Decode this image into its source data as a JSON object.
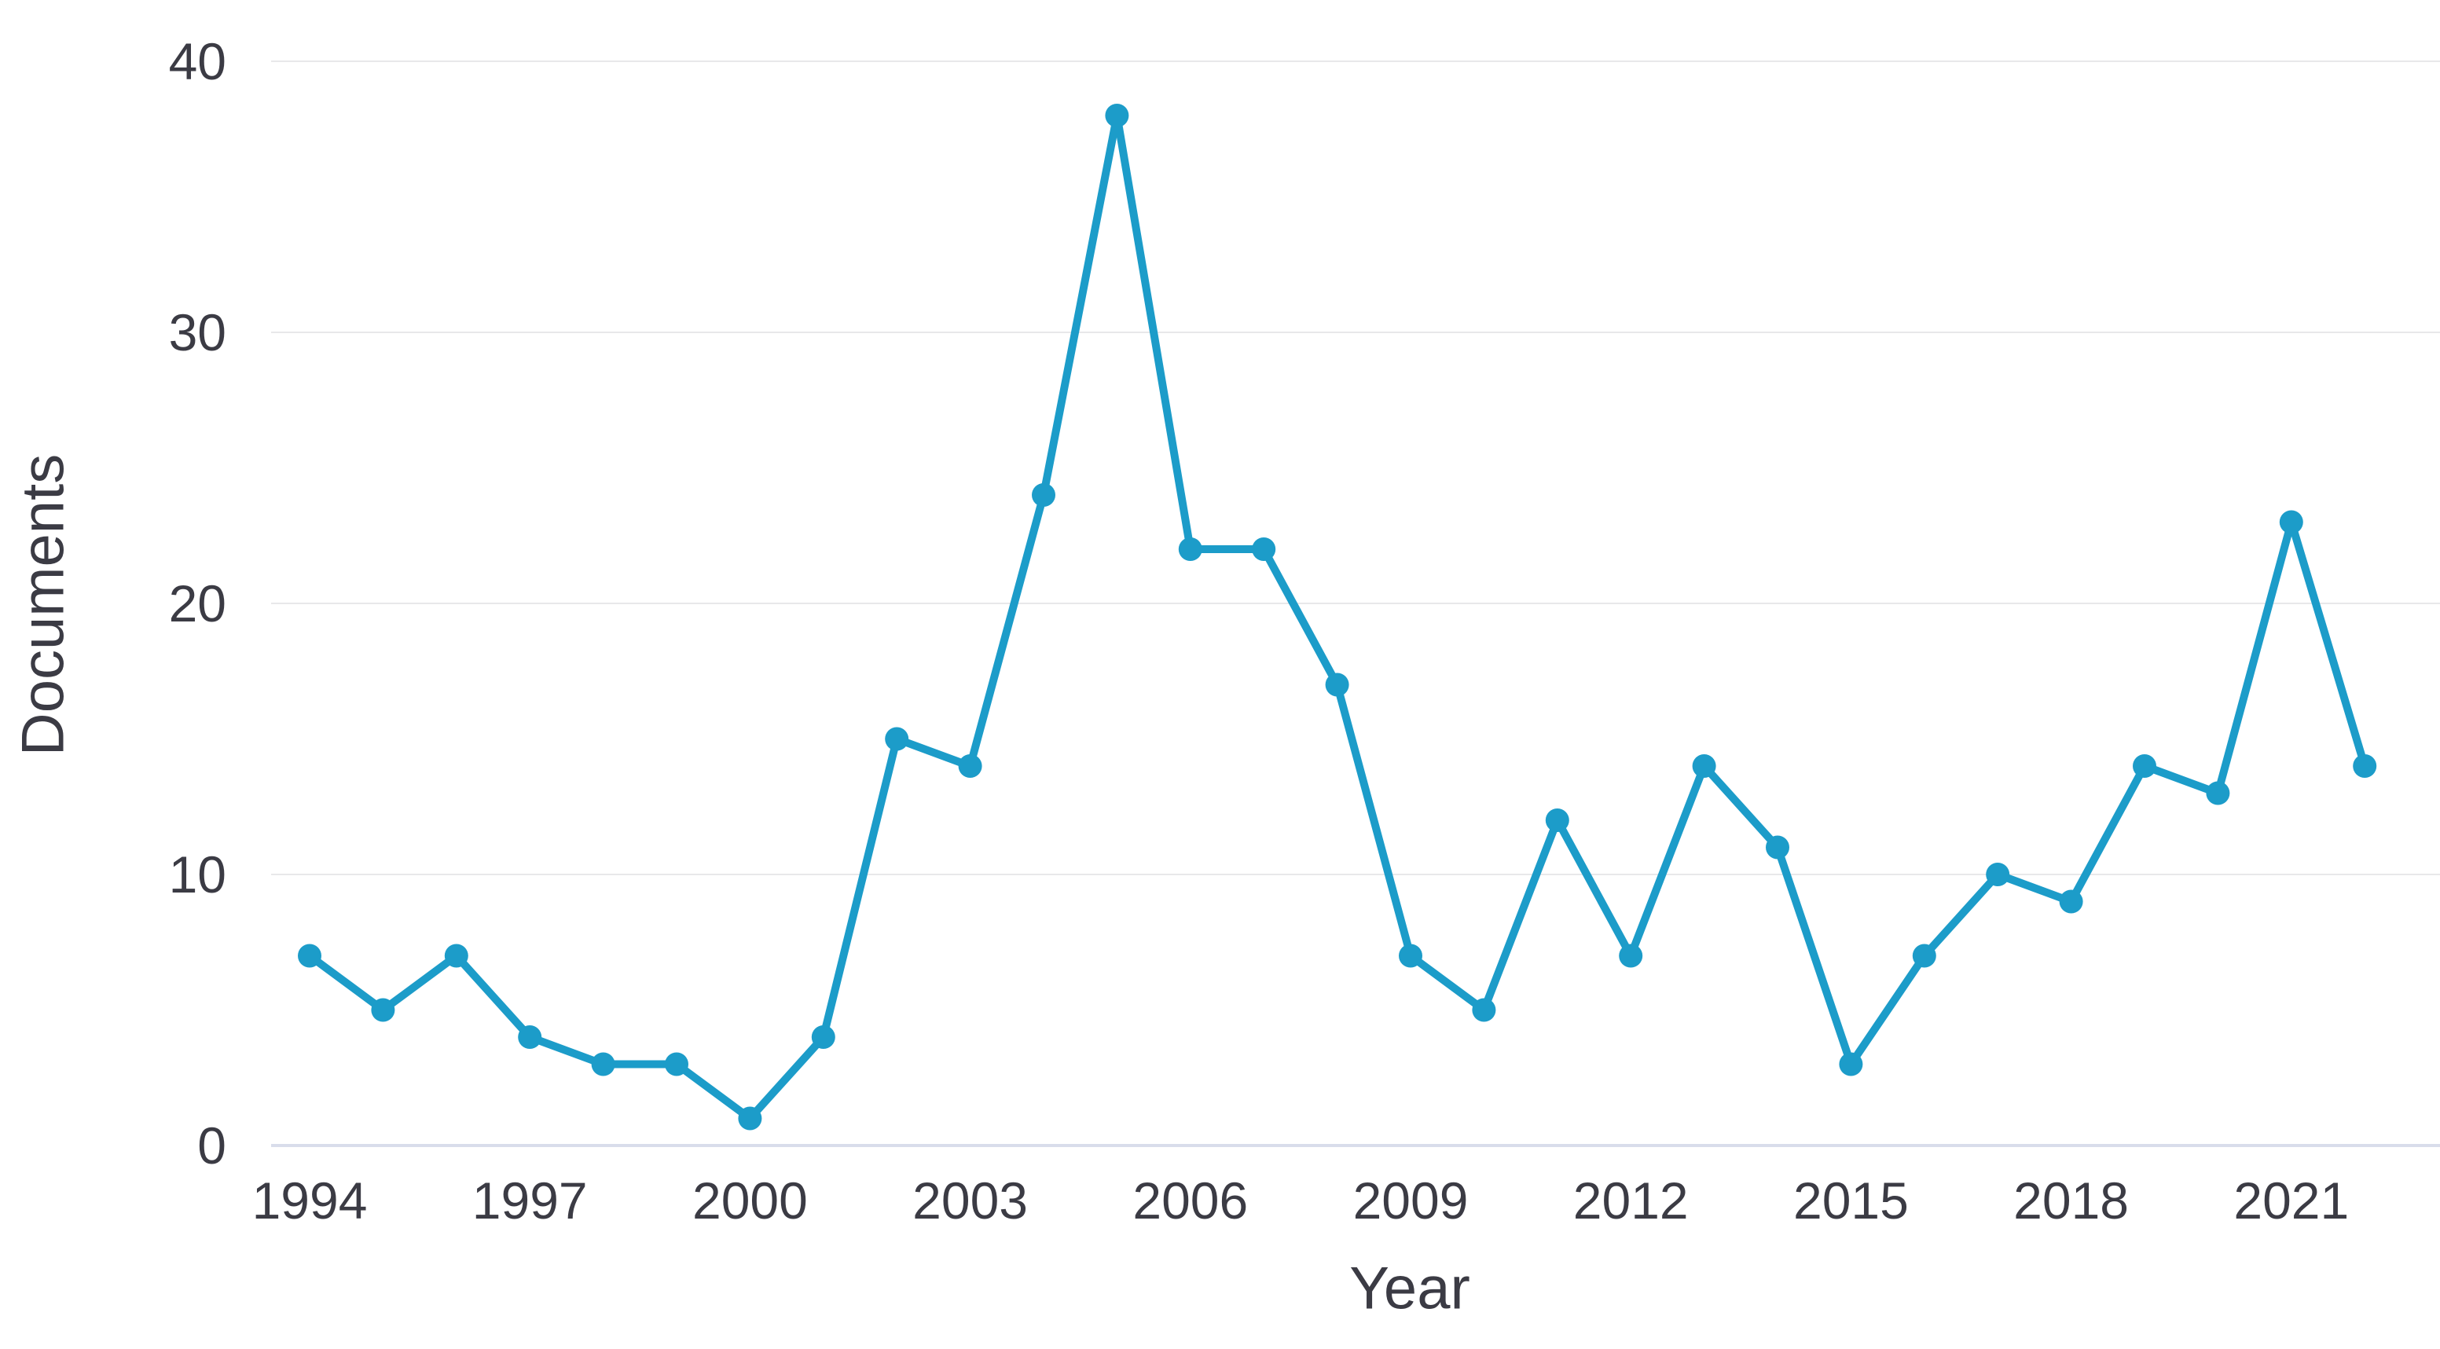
{
  "chart_data": {
    "type": "line",
    "xlabel": "Year",
    "ylabel": "Documents",
    "x": [
      1994,
      1995,
      1996,
      1997,
      1998,
      1999,
      2000,
      2001,
      2002,
      2003,
      2004,
      2005,
      2006,
      2007,
      2008,
      2009,
      2010,
      2011,
      2012,
      2013,
      2014,
      2015,
      2016,
      2017,
      2018,
      2019,
      2020,
      2021,
      2022
    ],
    "series": [
      {
        "name": "Documents",
        "values": [
          7,
          5,
          7,
          4,
          3,
          3,
          1,
          4,
          15,
          14,
          24,
          38,
          22,
          22,
          17,
          7,
          5,
          12,
          7,
          14,
          11,
          3,
          7,
          10,
          9,
          14,
          13,
          23,
          14
        ]
      }
    ],
    "x_tick_labels": [
      "1994",
      "1997",
      "2000",
      "2003",
      "2006",
      "2009",
      "2012",
      "2015",
      "2018",
      "2021"
    ],
    "y_ticks": [
      "0",
      "10",
      "20",
      "30",
      "40"
    ],
    "ylim": [
      0,
      40
    ],
    "xlim": [
      1994,
      2022
    ],
    "grid": "horizontal",
    "legend": "none",
    "marker": "circle",
    "line_color": "#1c9cc9",
    "gridline_color": "#e8e8ea",
    "axis_line_color": "#d9ddeb",
    "text_color": "#3b3b44",
    "background_color": "#ffffff"
  }
}
